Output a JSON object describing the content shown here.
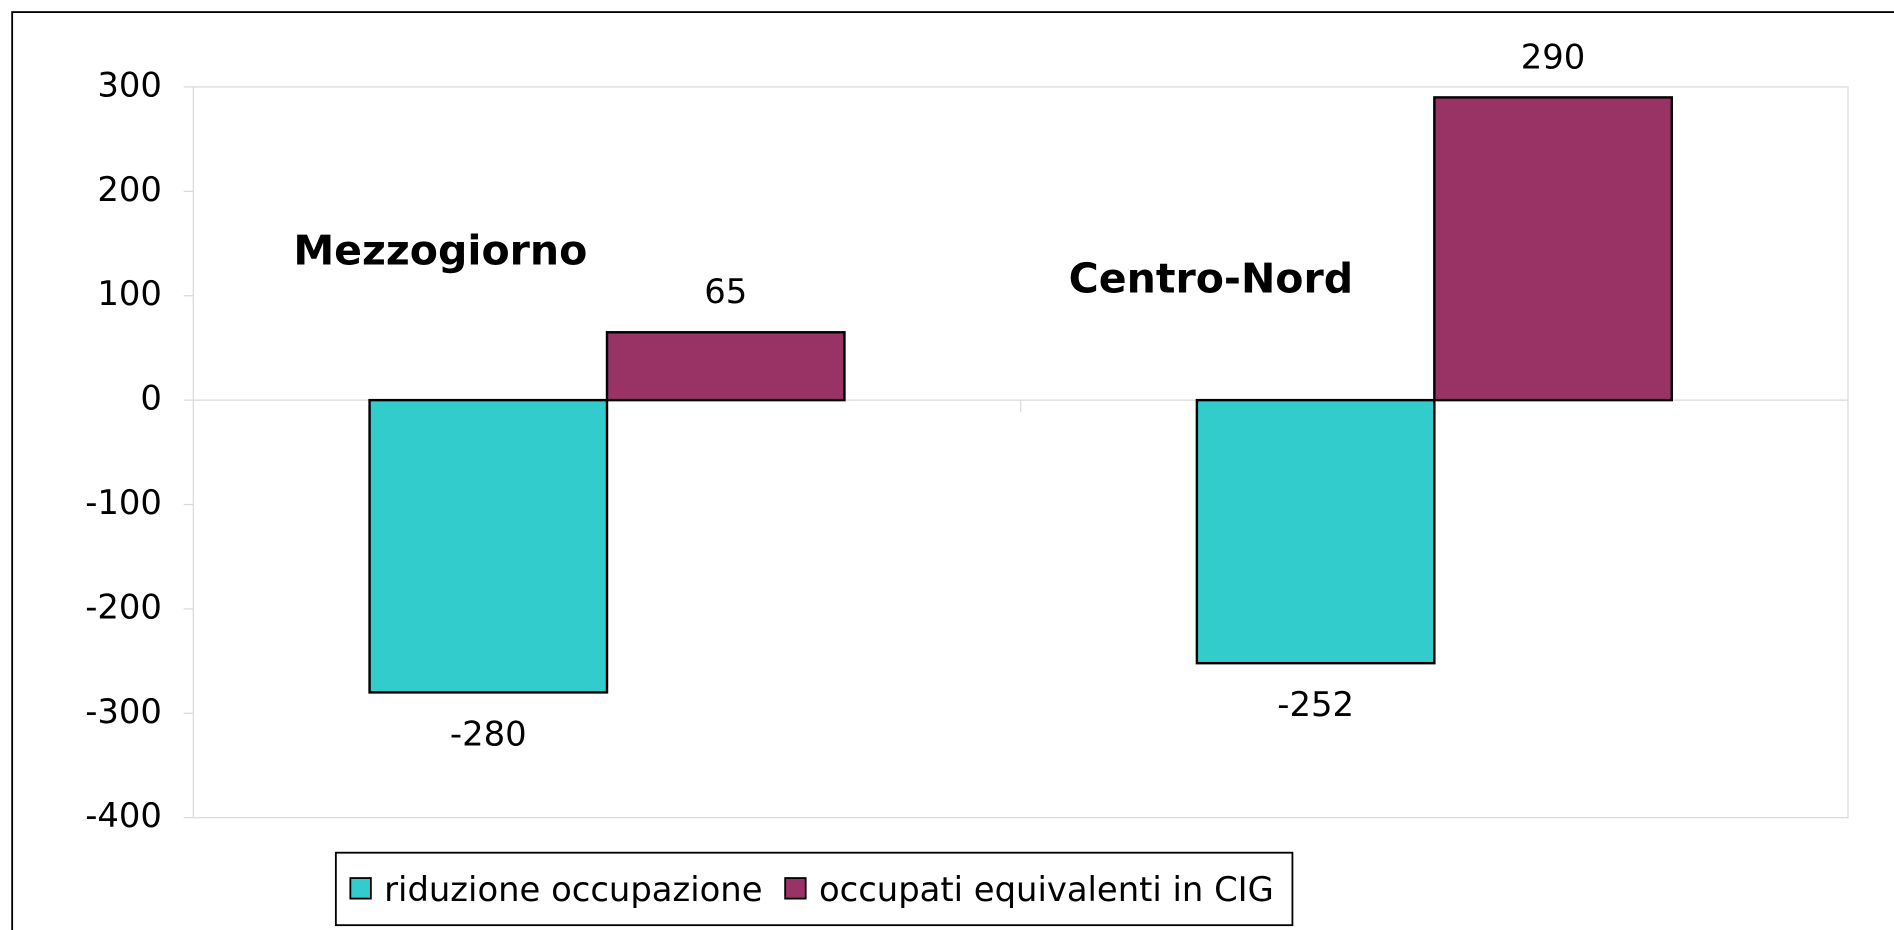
{
  "chart_data": {
    "type": "bar",
    "categories": [
      "Mezzogiorno",
      "Centro-Nord"
    ],
    "series": [
      {
        "name": "riduzione occupazione",
        "color": "#33cccc",
        "values": [
          -280,
          -252
        ]
      },
      {
        "name": "occupati equivalenti in CIG",
        "color": "#993366",
        "values": [
          65,
          290
        ]
      }
    ],
    "ylim": [
      -400,
      300
    ],
    "yticks": [
      -400,
      -300,
      -200,
      -100,
      0,
      100,
      200,
      300
    ],
    "grid": false,
    "legend": "bottom"
  }
}
